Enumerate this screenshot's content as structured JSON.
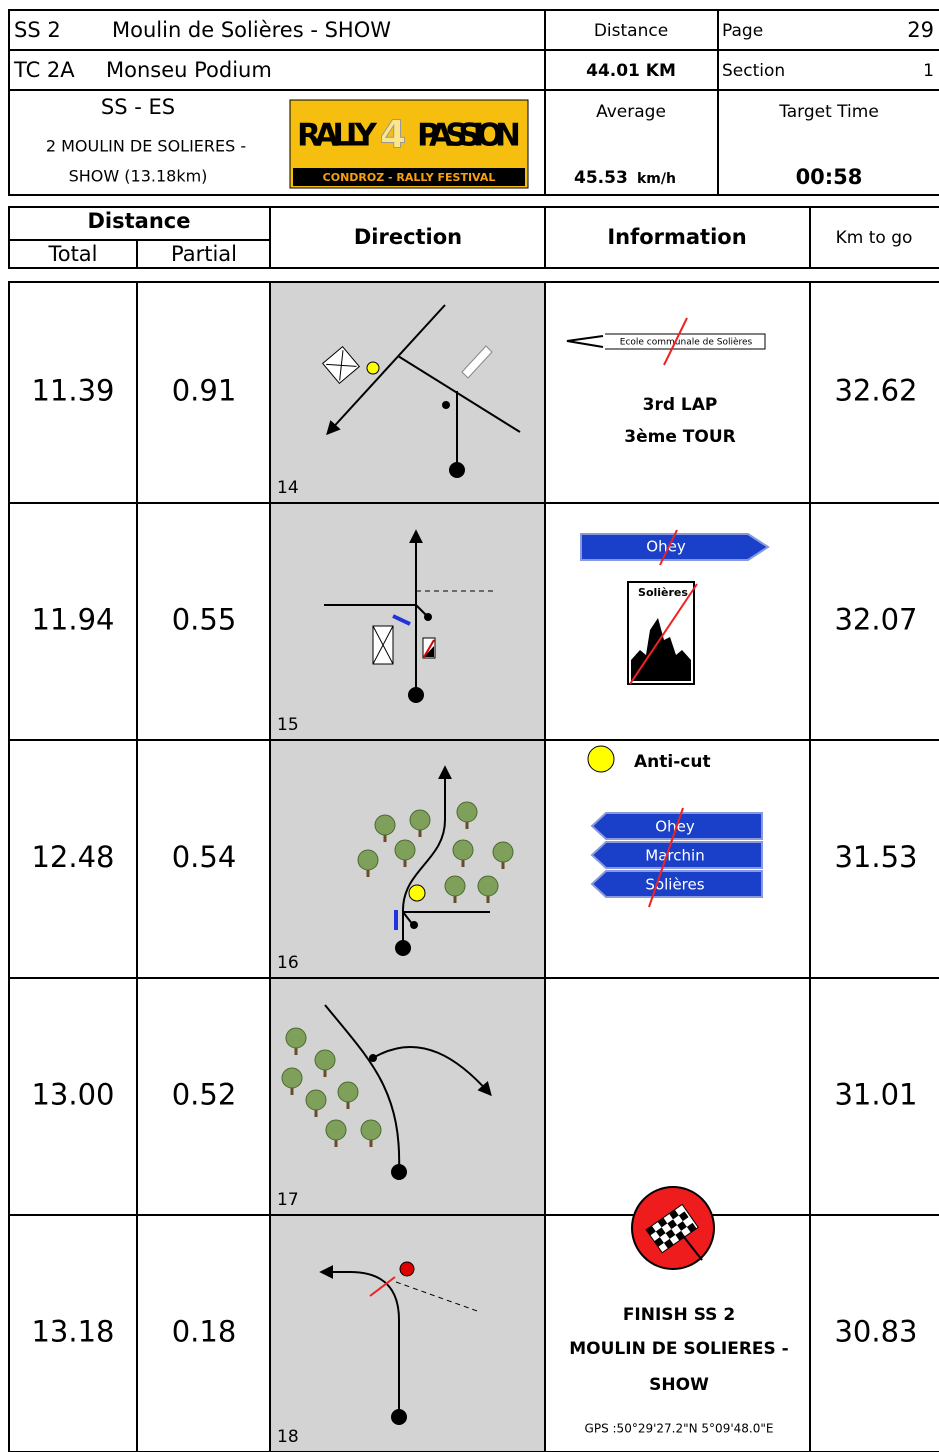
{
  "header": {
    "stage": "SS 2",
    "stage_name": "Moulin de Solières - SHOW",
    "distance_label": "Distance",
    "distance": "44.01 KM",
    "page_label": "Page",
    "page": "29",
    "tc": "TC 2A",
    "tc_name": "Monseu Podium",
    "section_label": "Section",
    "section": "1",
    "ss_es": "SS - ES",
    "stage_full": [
      "2 MOULIN DE SOLIERES  -",
      "SHOW (13.18km)"
    ],
    "average_label": "Average",
    "average": "45.53",
    "average_unit": "km/h",
    "target_label": "Target Time",
    "target": "00:58",
    "logo": {
      "left": "RALLY",
      "digit": "4",
      "right": "PASSION",
      "sub": "CONDROZ - RALLY FESTIVAL"
    }
  },
  "columns": {
    "distance": "Distance",
    "total": "Total",
    "partial": "Partial",
    "direction": "Direction",
    "information": "Information",
    "km_to_go": "Km to go"
  },
  "rows": [
    {
      "total": "11.39",
      "partial": "0.91",
      "number": "14",
      "km_to_go": "32.62",
      "info": {
        "sign": "Ecole communale de Solières",
        "lines": [
          "3rd LAP",
          "3ème TOUR"
        ]
      }
    },
    {
      "total": "11.94",
      "partial": "0.55",
      "number": "15",
      "km_to_go": "32.07",
      "info": {
        "signs": [
          "Ohey"
        ],
        "village": "Solières"
      }
    },
    {
      "total": "12.48",
      "partial": "0.54",
      "number": "16",
      "km_to_go": "31.53",
      "info": {
        "note": "Anti-cut",
        "signs": [
          "Ohey",
          "Marchin",
          "Solières"
        ]
      }
    },
    {
      "total": "13.00",
      "partial": "0.52",
      "number": "17",
      "km_to_go": "31.01"
    },
    {
      "total": "13.18",
      "partial": "0.18",
      "number": "18",
      "km_to_go": "30.83",
      "info": {
        "lines": [
          "FINISH SS 2",
          "MOULIN DE SOLIERES -",
          "SHOW"
        ],
        "gps": "GPS :50°29'27.2\"N 5°09'48.0\"E"
      }
    }
  ]
}
